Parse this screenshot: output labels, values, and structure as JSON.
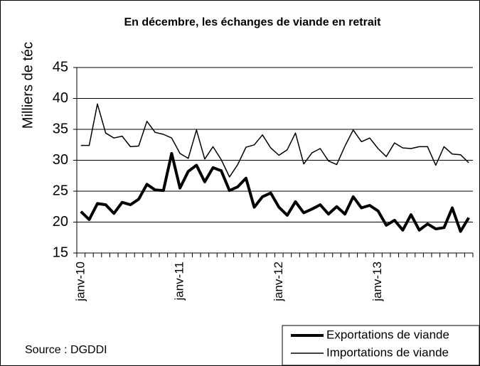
{
  "chart_data": {
    "type": "line",
    "title": "En décembre, les échanges de viande en retrait",
    "y_label": "Milliers de téc",
    "source": "Source : DGDDI",
    "categories": [
      "janv-10",
      null,
      null,
      null,
      null,
      null,
      null,
      null,
      null,
      null,
      null,
      null,
      "janv-11",
      null,
      null,
      null,
      null,
      null,
      null,
      null,
      null,
      null,
      null,
      null,
      "janv-12",
      null,
      null,
      null,
      null,
      null,
      null,
      null,
      null,
      null,
      null,
      null,
      "janv-13",
      null,
      null,
      null,
      null,
      null,
      null,
      null,
      null,
      null,
      null,
      null
    ],
    "series": [
      {
        "name": "Exportations de viande",
        "color": "#000000",
        "width": 4,
        "values": [
          21.7,
          20.4,
          23,
          22.8,
          21.4,
          23.2,
          22.8,
          23.7,
          26.1,
          25.2,
          25.1,
          31.1,
          25.5,
          28.2,
          29.2,
          26.5,
          28.8,
          28.3,
          25.1,
          25.7,
          27.1,
          22.4,
          24.1,
          24.7,
          22.4,
          21.1,
          23.3,
          21.5,
          22.1,
          22.8,
          21.3,
          22.5,
          21.3,
          24.1,
          22.3,
          22.7,
          21.8,
          19.5,
          20.3,
          18.7,
          21.2,
          18.7,
          19.7,
          18.9,
          19.1,
          22.3,
          18.5,
          20.7
        ]
      },
      {
        "name": "Importations de viande",
        "color": "#000000",
        "width": 1.5,
        "values": [
          32.4,
          32.4,
          39.1,
          34.4,
          33.6,
          33.9,
          32.2,
          32.3,
          36.3,
          34.5,
          34.2,
          33.6,
          31.1,
          30.3,
          34.9,
          30.2,
          32.2,
          30.1,
          27.3,
          29.3,
          32.1,
          32.5,
          34.1,
          32,
          30.8,
          31.7,
          34.4,
          29.4,
          31.2,
          31.9,
          29.9,
          29.3,
          32.3,
          34.9,
          33,
          33.6,
          31.9,
          30.6,
          32.8,
          32,
          31.9,
          32.2,
          32.2,
          29.2,
          32.2,
          31,
          30.9,
          29.6
        ]
      }
    ],
    "ylim": [
      15,
      45
    ],
    "yticks": [
      15,
      20,
      25,
      30,
      35,
      40,
      45
    ],
    "grid": true,
    "legend": "bottom-right"
  }
}
